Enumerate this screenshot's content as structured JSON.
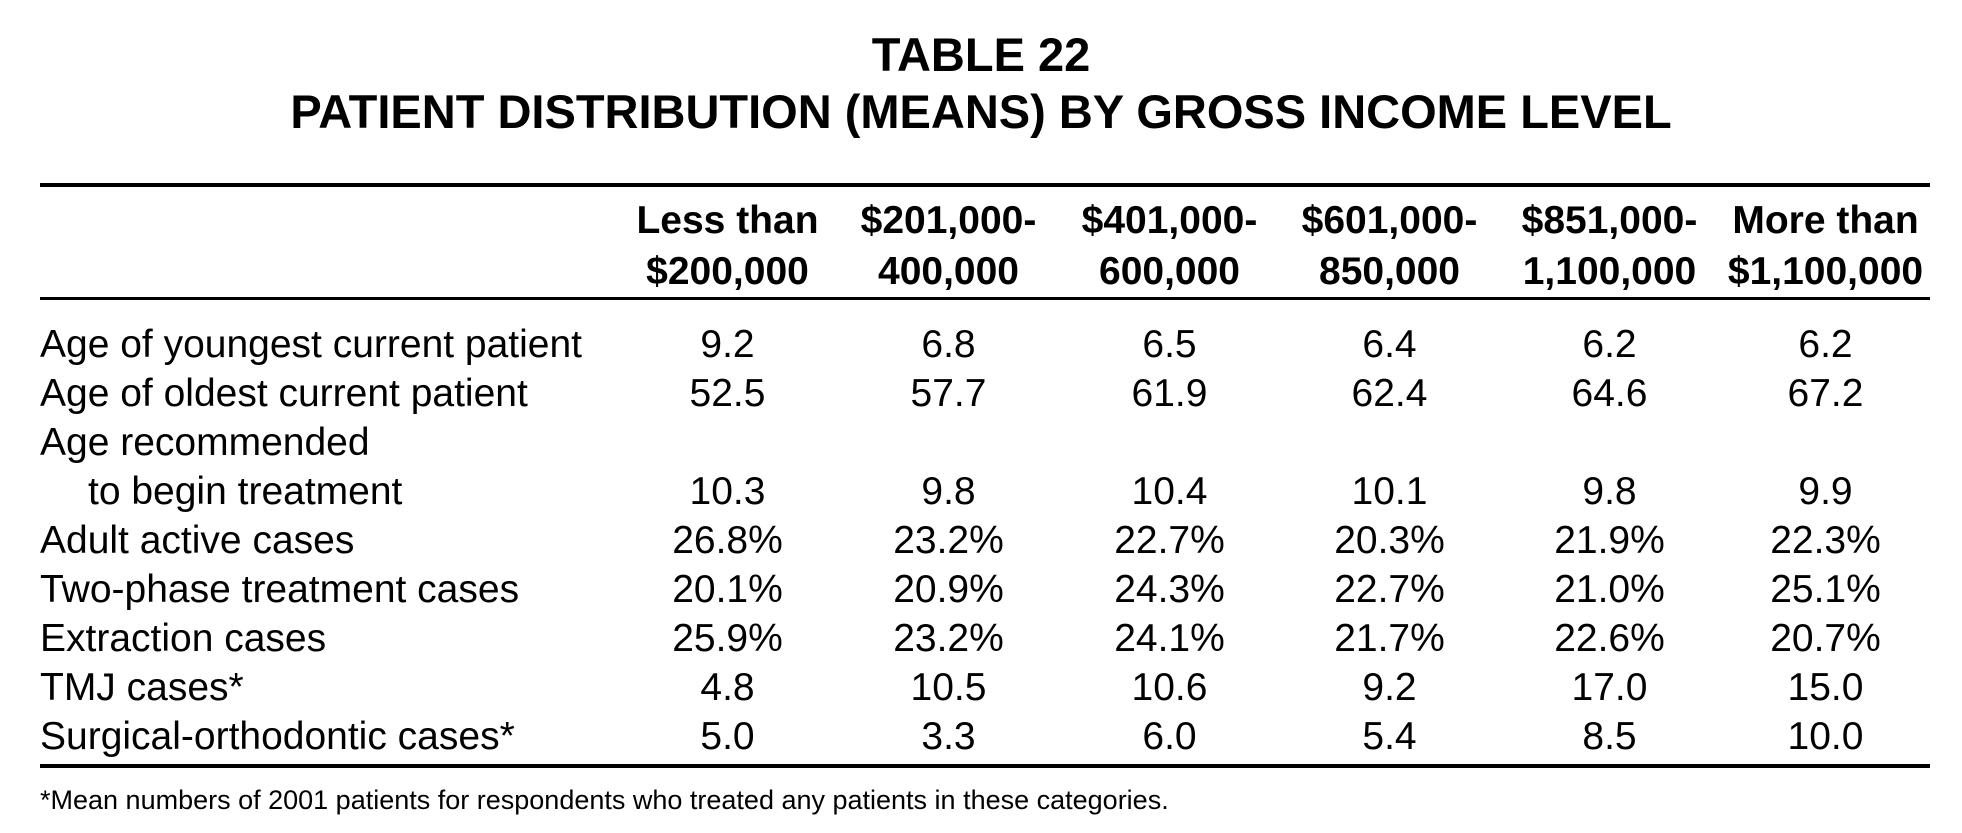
{
  "table": {
    "title": "TABLE 22",
    "subtitle": "PATIENT DISTRIBUTION (MEANS) BY GROSS INCOME LEVEL",
    "columns": [
      {
        "line1": "Less than",
        "line2": "$200,000"
      },
      {
        "line1": "$201,000-",
        "line2": "400,000"
      },
      {
        "line1": "$401,000-",
        "line2": "600,000"
      },
      {
        "line1": "$601,000-",
        "line2": "850,000"
      },
      {
        "line1": "$851,000-",
        "line2": "1,100,000"
      },
      {
        "line1": "More than",
        "line2": "$1,100,000"
      }
    ],
    "rows": [
      {
        "label": "Age of youngest current patient",
        "values": [
          "9.2",
          "6.8",
          "6.5",
          "6.4",
          "6.2",
          "6.2"
        ]
      },
      {
        "label": "Age of oldest current patient",
        "values": [
          "52.5",
          "57.7",
          "61.9",
          "62.4",
          "64.6",
          "67.2"
        ]
      },
      {
        "label": "Age recommended",
        "label_cont": "to begin treatment",
        "values": [
          "10.3",
          "9.8",
          "10.4",
          "10.1",
          "9.8",
          "9.9"
        ]
      },
      {
        "label": "Adult active cases",
        "values": [
          "26.8%",
          "23.2%",
          "22.7%",
          "20.3%",
          "21.9%",
          "22.3%"
        ]
      },
      {
        "label": "Two-phase treatment cases",
        "values": [
          "20.1%",
          "20.9%",
          "24.3%",
          "22.7%",
          "21.0%",
          "25.1%"
        ]
      },
      {
        "label": "Extraction cases",
        "values": [
          "25.9%",
          "23.2%",
          "24.1%",
          "21.7%",
          "22.6%",
          "20.7%"
        ]
      },
      {
        "label": "TMJ cases*",
        "values": [
          "4.8",
          "10.5",
          "10.6",
          "9.2",
          "17.0",
          "15.0"
        ]
      },
      {
        "label": "Surgical-orthodontic cases*",
        "values": [
          "5.0",
          "3.3",
          "6.0",
          "5.4",
          "8.5",
          "10.0"
        ]
      }
    ],
    "footnote": "*Mean numbers of 2001 patients for respondents who treated any patients in these categories."
  }
}
